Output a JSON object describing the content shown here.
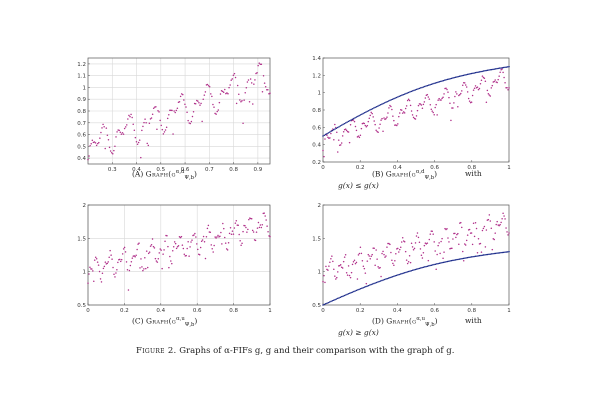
{
  "panels": [
    {
      "id": "A",
      "caption_label": "(A)",
      "caption_text": "Graph(g",
      "sup": "α,d",
      "sub": "Ψ,b",
      "caption_tail": ")",
      "extra_with": "",
      "extra_line": "",
      "chart_data": {
        "type": "scatter",
        "xlim": [
          0.2,
          0.95
        ],
        "ylim": [
          0.35,
          1.25
        ],
        "xticks": [
          "0.3",
          "0.4",
          "0.5",
          "0.6",
          "0.7",
          "0.8",
          "0.9"
        ],
        "xtick_values": [
          0.3,
          0.4,
          0.5,
          0.6,
          0.7,
          0.8,
          0.9
        ],
        "yticks": [
          "0.4",
          "0.5",
          "0.6",
          "0.7",
          "0.8",
          "0.9",
          "1",
          "1.1",
          "1.2"
        ],
        "ytick_values": [
          0.4,
          0.5,
          0.6,
          0.7,
          0.8,
          0.9,
          1.0,
          1.1,
          1.2
        ],
        "grid": true,
        "series": [
          {
            "kind": "fif",
            "x0": 0.2,
            "x1": 0.95,
            "n": 170,
            "base0": 0.45,
            "base1": 1.05,
            "amp": 0.13,
            "cycles": 7,
            "noise": 0.02
          }
        ]
      }
    },
    {
      "id": "B",
      "caption_label": "(B)",
      "caption_text": "Graph(g",
      "sup": "α,d",
      "sub": "Ψ,b",
      "caption_tail": ")",
      "extra_with": "with",
      "extra_line": "g(x) ≤ g(x)",
      "chart_data": {
        "type": "scatter",
        "xlim": [
          0,
          1
        ],
        "ylim": [
          0.2,
          1.4
        ],
        "xticks": [
          "0",
          "0.2",
          "0.4",
          "0.6",
          "0.8",
          "1"
        ],
        "xtick_values": [
          0,
          0.2,
          0.4,
          0.6,
          0.8,
          1
        ],
        "yticks": [
          "0.2",
          "0.4",
          "0.6",
          "0.8",
          "1",
          "1.2",
          "1.4"
        ],
        "ytick_values": [
          0.2,
          0.4,
          0.6,
          0.8,
          1.0,
          1.2,
          1.4
        ],
        "grid": false,
        "series": [
          {
            "kind": "fif",
            "x0": 0,
            "x1": 1,
            "n": 190,
            "base0": 0.42,
            "base1": 1.12,
            "amp": 0.12,
            "cycles": 10,
            "noise": 0.02
          },
          {
            "kind": "curve",
            "x0": 0,
            "x1": 1,
            "n": 140,
            "y0": 0.5,
            "y1": 1.3,
            "bend": 0.18
          }
        ]
      }
    },
    {
      "id": "C",
      "caption_label": "(C)",
      "caption_text": "Graph(g",
      "sup": "α,u",
      "sub": "Ψ,b",
      "caption_tail": ")",
      "extra_with": "",
      "extra_line": "",
      "chart_data": {
        "type": "scatter",
        "xlim": [
          0,
          1
        ],
        "ylim": [
          0.5,
          2
        ],
        "xticks": [
          "0",
          "0.2",
          "0.4",
          "0.6",
          "0.8",
          "1"
        ],
        "xtick_values": [
          0,
          0.2,
          0.4,
          0.6,
          0.8,
          1
        ],
        "yticks": [
          "0.5",
          "1",
          "1.5",
          "2"
        ],
        "ytick_values": [
          0.5,
          1.0,
          1.5,
          2.0
        ],
        "grid": true,
        "series": [
          {
            "kind": "fif",
            "x0": 0,
            "x1": 1,
            "n": 190,
            "base0": 0.95,
            "base1": 1.65,
            "amp": 0.18,
            "cycles": 13,
            "noise": 0.05
          }
        ]
      }
    },
    {
      "id": "D",
      "caption_label": "(D)",
      "caption_text": "Graph(g",
      "sup": "α,u",
      "sub": "Ψ,b",
      "caption_tail": ")",
      "extra_with": "with",
      "extra_line": "g(x) ≥ g(x)",
      "chart_data": {
        "type": "scatter",
        "xlim": [
          0,
          1
        ],
        "ylim": [
          0.5,
          2
        ],
        "xticks": [
          "0",
          "0.2",
          "0.4",
          "0.6",
          "0.8",
          "1"
        ],
        "xtick_values": [
          0,
          0.2,
          0.4,
          0.6,
          0.8,
          1
        ],
        "yticks": [
          "0.5",
          "1",
          "1.5",
          "2"
        ],
        "ytick_values": [
          0.5,
          1.0,
          1.5,
          2.0
        ],
        "grid": false,
        "series": [
          {
            "kind": "fif",
            "x0": 0,
            "x1": 1,
            "n": 190,
            "base0": 0.95,
            "base1": 1.65,
            "amp": 0.18,
            "cycles": 13,
            "noise": 0.04
          },
          {
            "kind": "curve",
            "x0": 0,
            "x1": 1,
            "n": 140,
            "y0": 0.5,
            "y1": 1.3,
            "bend": 0.18
          }
        ]
      }
    }
  ],
  "figure_caption": {
    "label": "Figure 2.",
    "text": "Graphs of α-FIFs g, g and their comparison with the graph of g."
  },
  "colors": {
    "points": "#b0308a",
    "curve": "#1a2a8a",
    "grid": "#d8d8d8",
    "axis": "#555555"
  }
}
